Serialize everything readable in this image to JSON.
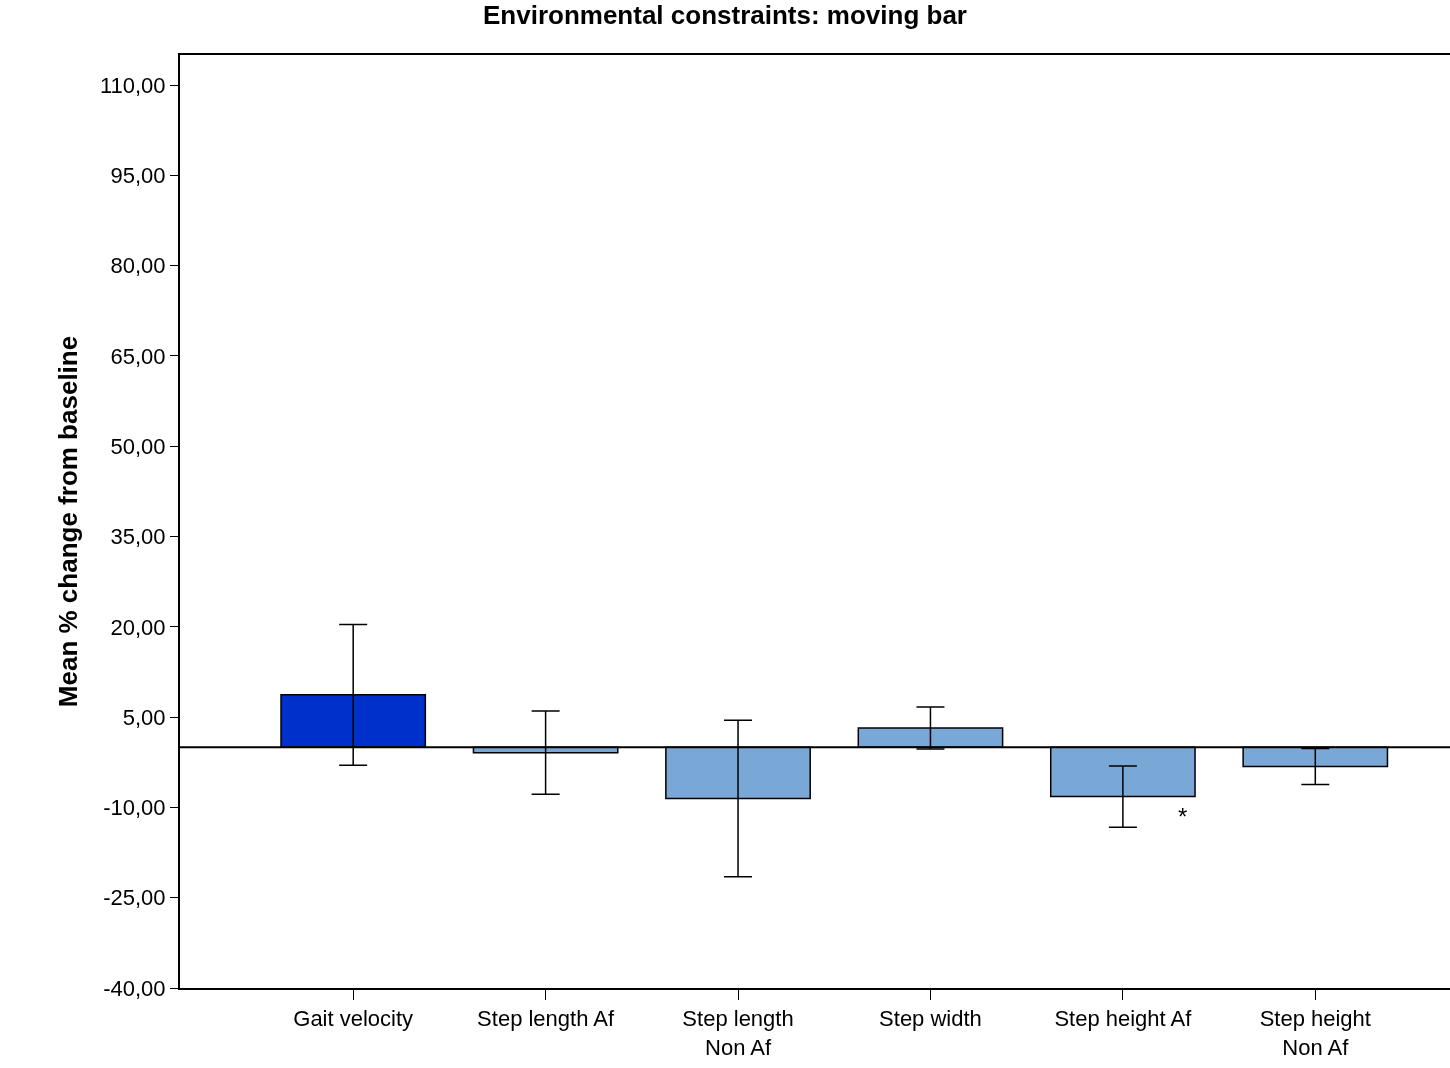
{
  "chart_data": {
    "type": "bar",
    "title": "Environmental constraints: moving bar",
    "ylabel": "Mean % change from baseline",
    "categories": [
      "Gait velocity",
      "Step length Af",
      "Step length\nNon Af",
      "Step width",
      "Step height Af",
      "Step height\nNon Af"
    ],
    "values": [
      8.7,
      -0.9,
      -8.5,
      3.2,
      -8.2,
      -3.2
    ],
    "colors": [
      "#0030cc",
      "#7aa8d6",
      "#7aa8d6",
      "#7aa8d6",
      "#7aa8d6",
      "#7aa8d6"
    ],
    "errors": [
      11.7,
      6.9,
      13.0,
      3.5,
      5.1,
      3.0
    ],
    "ylim": [
      -40,
      115
    ],
    "yticks": [
      {
        "value": -40,
        "label": "-40,00"
      },
      {
        "value": -25,
        "label": "-25,00"
      },
      {
        "value": -10,
        "label": "-10,00"
      },
      {
        "value": 5,
        "label": "5,00"
      },
      {
        "value": 20,
        "label": "20,00"
      },
      {
        "value": 35,
        "label": "35,00"
      },
      {
        "value": 50,
        "label": "50,00"
      },
      {
        "value": 65,
        "label": "65,00"
      },
      {
        "value": 80,
        "label": "80,00"
      },
      {
        "value": 95,
        "label": "95,00"
      },
      {
        "value": 110,
        "label": "110,00"
      }
    ],
    "ref_lines": [
      {
        "axis": "y",
        "value": 0,
        "color": "#000000"
      }
    ],
    "annotations": [
      {
        "text": "*",
        "x": "Step height Af",
        "y": -11.5
      }
    ]
  }
}
